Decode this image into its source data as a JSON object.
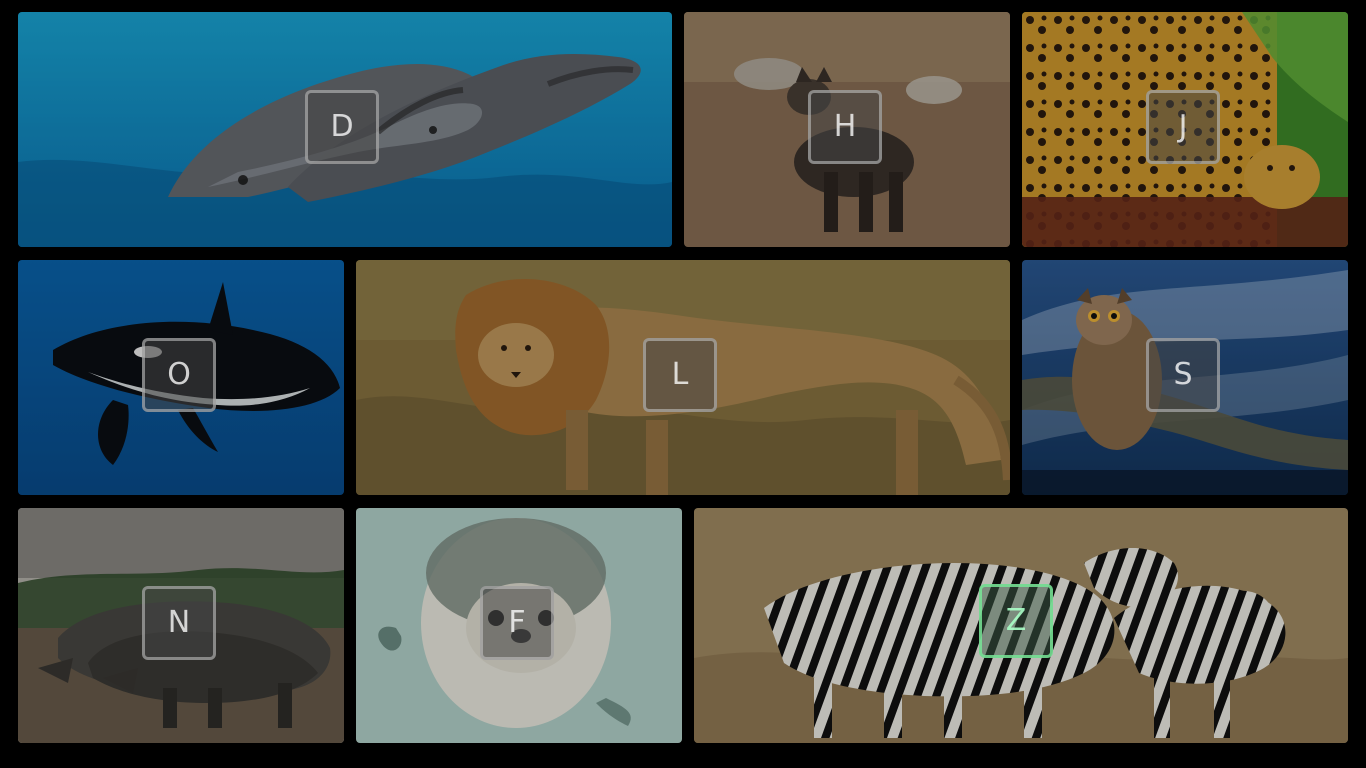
{
  "tiles": [
    {
      "id": "dolphin",
      "animal": "dolphins",
      "key": "D",
      "selected": false
    },
    {
      "id": "hyena",
      "animal": "hyena",
      "key": "H",
      "selected": false
    },
    {
      "id": "jaguar",
      "animal": "jaguar",
      "key": "J",
      "selected": false
    },
    {
      "id": "orca",
      "animal": "orca",
      "key": "O",
      "selected": false
    },
    {
      "id": "lion",
      "animal": "lion",
      "key": "L",
      "selected": false
    },
    {
      "id": "owl",
      "animal": "owl",
      "key": "S",
      "selected": false
    },
    {
      "id": "rhino",
      "animal": "rhinos",
      "key": "N",
      "selected": false
    },
    {
      "id": "seal",
      "animal": "seal",
      "key": "F",
      "selected": false
    },
    {
      "id": "zebra",
      "animal": "zebras",
      "key": "Z",
      "selected": true
    }
  ],
  "colors": {
    "background": "#000000",
    "selected_outline": "#78E696"
  }
}
